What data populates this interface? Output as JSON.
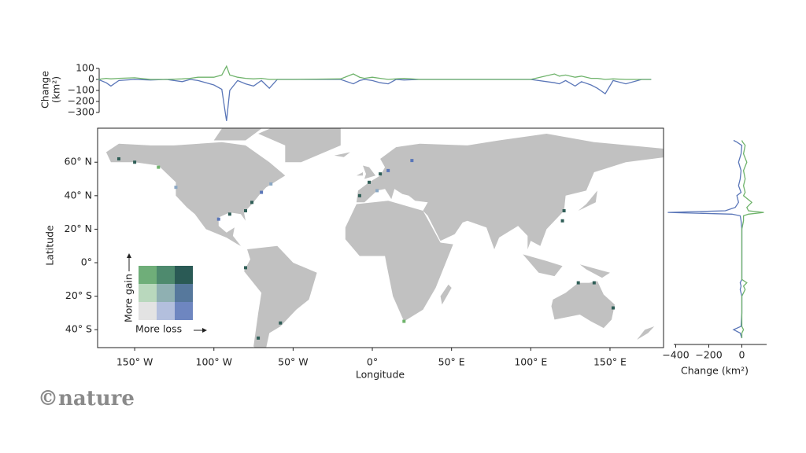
{
  "top_chart": {
    "type": "line",
    "ylabel": [
      "Change",
      "(km²)"
    ],
    "ylim": [
      -380,
      110
    ],
    "yticks": [
      100,
      0,
      {
        "value": -100,
        "label": "−100"
      },
      {
        "value": -200,
        "label": "−200"
      },
      {
        "value": -300,
        "label": "−300"
      }
    ],
    "x": [
      -173,
      -168,
      -165,
      -160,
      -150,
      -140,
      -130,
      -120,
      -115,
      -110,
      -100,
      -95,
      -92,
      -90,
      -85,
      -80,
      -75,
      -70,
      -65,
      -60,
      -50,
      -20,
      -12,
      -8,
      -5,
      0,
      5,
      10,
      15,
      20,
      30,
      40,
      60,
      100,
      115,
      118,
      122,
      128,
      132,
      138,
      142,
      147,
      152,
      160,
      170,
      176
    ],
    "series": [
      {
        "color": "#5a76b8",
        "values": [
          0,
          -30,
          -60,
          -10,
          0,
          -5,
          0,
          -20,
          0,
          -10,
          -50,
          -90,
          -377,
          -100,
          -10,
          -40,
          -60,
          -10,
          -80,
          0,
          0,
          0,
          -40,
          -10,
          0,
          -10,
          -30,
          -40,
          0,
          -5,
          0,
          0,
          0,
          0,
          -30,
          -40,
          -10,
          -60,
          -20,
          -50,
          -80,
          -130,
          -10,
          -40,
          0,
          0
        ]
      },
      {
        "color": "#6fb36b",
        "values": [
          0,
          10,
          5,
          10,
          15,
          0,
          0,
          5,
          10,
          20,
          20,
          40,
          120,
          40,
          20,
          10,
          5,
          10,
          0,
          0,
          0,
          5,
          50,
          20,
          10,
          20,
          10,
          0,
          5,
          10,
          0,
          0,
          0,
          0,
          50,
          30,
          40,
          20,
          30,
          10,
          10,
          0,
          5,
          0,
          0,
          0
        ]
      }
    ]
  },
  "map": {
    "type": "map",
    "xlabel": "Longitude",
    "ylabel": "Latitude",
    "xlim": [
      -173.4,
      183.8
    ],
    "ylim": [
      -50.7,
      80.3
    ],
    "xticks": [
      {
        "value": -150,
        "label": "150° W"
      },
      {
        "value": -100,
        "label": "100° W"
      },
      {
        "value": -50,
        "label": "50° W"
      },
      {
        "value": 0,
        "label": "0°"
      },
      {
        "value": 50,
        "label": "50° E"
      },
      {
        "value": 100,
        "label": "100° E"
      },
      {
        "value": 150,
        "label": "150° E"
      }
    ],
    "yticks": [
      {
        "value": 60,
        "label": "60° N"
      },
      {
        "value": 40,
        "label": "40° N"
      },
      {
        "value": 20,
        "label": "20° N"
      },
      {
        "value": 0,
        "label": "0°"
      },
      {
        "value": -20,
        "label": "20° S"
      },
      {
        "value": -40,
        "label": "40° S"
      }
    ],
    "legend": {
      "gain": "More gain",
      "loss": "More loss"
    }
  },
  "side_chart": {
    "type": "line",
    "xlabel": "Change (km²)",
    "xlim": [
      -450,
      150
    ],
    "xticks": [
      {
        "value": -400,
        "label": "−400"
      },
      {
        "value": -200,
        "label": "−200"
      },
      0
    ],
    "latitudes": [
      73,
      72,
      70,
      65,
      60,
      55,
      50,
      46,
      42,
      40,
      36,
      33,
      31,
      30,
      29,
      28,
      25,
      20,
      10,
      0,
      -10,
      -12,
      -14,
      -16,
      -20,
      -30,
      -38,
      -40,
      -42,
      -45
    ],
    "series": [
      {
        "color": "#5a76b8",
        "values": [
          -50,
          -30,
          0,
          -5,
          -20,
          -5,
          -10,
          -20,
          -5,
          -30,
          -20,
          -40,
          -100,
          -448,
          -60,
          -10,
          -5,
          0,
          0,
          0,
          0,
          -10,
          -5,
          -10,
          0,
          0,
          -5,
          -50,
          -10,
          0
        ]
      },
      {
        "color": "#6fb36b",
        "values": [
          0,
          5,
          20,
          10,
          30,
          10,
          20,
          10,
          20,
          10,
          60,
          30,
          40,
          133,
          40,
          10,
          10,
          0,
          0,
          0,
          0,
          30,
          10,
          20,
          0,
          0,
          0,
          10,
          0,
          0
        ]
      }
    ]
  },
  "logo": "©nature"
}
